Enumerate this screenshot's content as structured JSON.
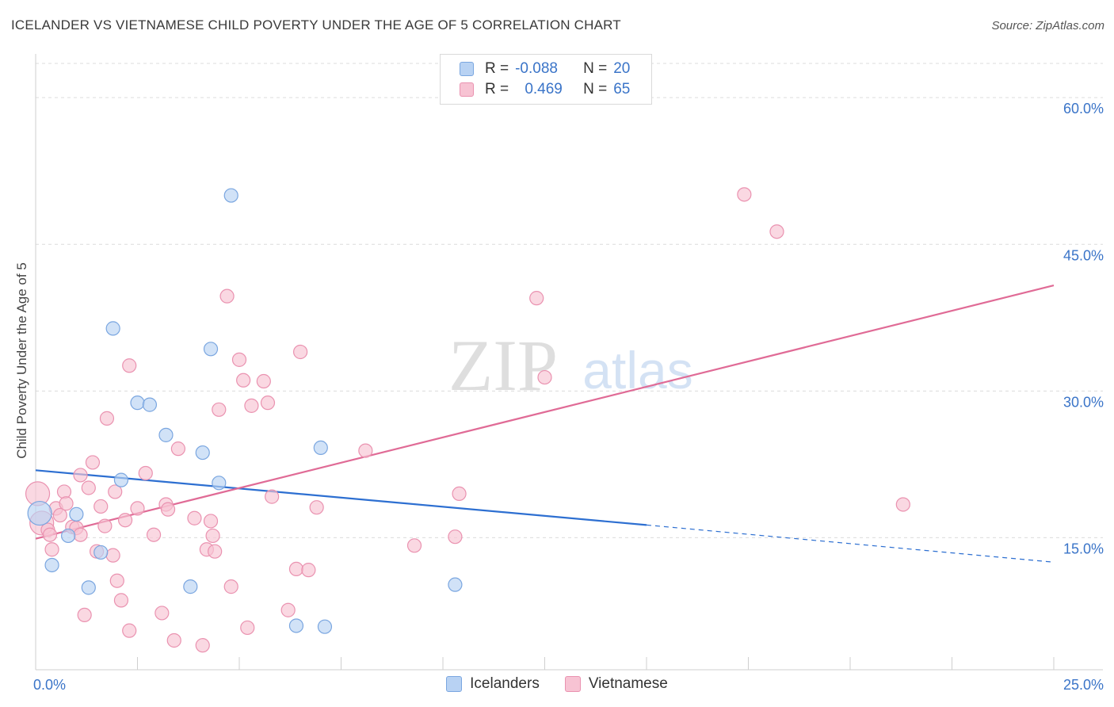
{
  "header": {
    "title": "ICELANDER VS VIETNAMESE CHILD POVERTY UNDER THE AGE OF 5 CORRELATION CHART",
    "source": "Source: ZipAtlas.com"
  },
  "stats": {
    "icelanders": {
      "r_label": "R =",
      "r": "-0.088",
      "n_label": "N =",
      "n": "20"
    },
    "vietnamese": {
      "r_label": "R =",
      "r": "0.469",
      "n_label": "N =",
      "n": "65"
    }
  },
  "legend": {
    "icelanders": "Icelanders",
    "vietnamese": "Vietnamese"
  },
  "watermark": {
    "zip": "ZIP",
    "atlas": "atlas"
  },
  "colors": {
    "icelanders_fill": "#b8d2f3",
    "icelanders_stroke": "#7aa6e0",
    "icelanders_line": "#2d6fd1",
    "vietnamese_fill": "#f7c3d3",
    "vietnamese_stroke": "#ea92b0",
    "vietnamese_line": "#e06b96",
    "tick_label": "#3a74c8",
    "grid": "#dcdcdc"
  },
  "chart_data": {
    "type": "scatter",
    "title": "ICELANDER VS VIETNAMESE CHILD POVERTY UNDER THE AGE OF 5 CORRELATION CHART",
    "xlabel": "",
    "ylabel": "Child Poverty Under the Age of 5",
    "xlim": [
      0,
      25
    ],
    "ylim": [
      1.5,
      63.5
    ],
    "x_tick_labels": [
      {
        "value": 0,
        "label": "0.0%"
      },
      {
        "value": 25,
        "label": "25.0%"
      }
    ],
    "x_minor_ticks": [
      2.5,
      5,
      7.5,
      10,
      12.5,
      15,
      17.5,
      20,
      22.5,
      25
    ],
    "y_ticks": [
      {
        "value": 15,
        "label": "15.0%"
      },
      {
        "value": 30,
        "label": "30.0%"
      },
      {
        "value": 45,
        "label": "45.0%"
      },
      {
        "value": 60,
        "label": "60.0%"
      }
    ],
    "grid": true,
    "legend_position": "bottom-center",
    "series": [
      {
        "name": "Icelanders",
        "r": -0.088,
        "n": 20,
        "points": [
          {
            "x": 0.1,
            "y": 17.5,
            "size": "large"
          },
          {
            "x": 0.4,
            "y": 12.2
          },
          {
            "x": 0.8,
            "y": 15.2
          },
          {
            "x": 1.0,
            "y": 17.4
          },
          {
            "x": 1.3,
            "y": 9.9
          },
          {
            "x": 1.6,
            "y": 13.5
          },
          {
            "x": 1.9,
            "y": 36.4
          },
          {
            "x": 2.1,
            "y": 20.9
          },
          {
            "x": 2.5,
            "y": 28.8
          },
          {
            "x": 2.8,
            "y": 28.6
          },
          {
            "x": 3.2,
            "y": 25.5
          },
          {
            "x": 3.8,
            "y": 10.0
          },
          {
            "x": 4.1,
            "y": 23.7
          },
          {
            "x": 4.3,
            "y": 34.3
          },
          {
            "x": 4.5,
            "y": 20.6
          },
          {
            "x": 4.8,
            "y": 50.0
          },
          {
            "x": 6.4,
            "y": 6.0
          },
          {
            "x": 7.1,
            "y": 5.9
          },
          {
            "x": 7.0,
            "y": 24.2
          },
          {
            "x": 10.3,
            "y": 10.2
          }
        ],
        "trend": {
          "x_start": 0,
          "y_start": 21.9,
          "x_solid_end": 15.0,
          "y_solid_end": 16.3,
          "x_end": 25,
          "y_end": 12.5
        }
      },
      {
        "name": "Vietnamese",
        "r": 0.469,
        "n": 65,
        "points": [
          {
            "x": 0.05,
            "y": 19.5,
            "size": "large"
          },
          {
            "x": 0.15,
            "y": 16.5,
            "size": "large"
          },
          {
            "x": 0.3,
            "y": 15.8
          },
          {
            "x": 0.35,
            "y": 15.3
          },
          {
            "x": 0.4,
            "y": 13.8
          },
          {
            "x": 0.5,
            "y": 18.0
          },
          {
            "x": 0.6,
            "y": 17.3
          },
          {
            "x": 0.7,
            "y": 19.7
          },
          {
            "x": 0.75,
            "y": 18.5
          },
          {
            "x": 0.9,
            "y": 16.1
          },
          {
            "x": 1.0,
            "y": 16.0
          },
          {
            "x": 1.1,
            "y": 15.3
          },
          {
            "x": 1.1,
            "y": 21.4
          },
          {
            "x": 1.2,
            "y": 7.1
          },
          {
            "x": 1.3,
            "y": 20.1
          },
          {
            "x": 1.4,
            "y": 22.7
          },
          {
            "x": 1.5,
            "y": 13.6
          },
          {
            "x": 1.6,
            "y": 18.2
          },
          {
            "x": 1.7,
            "y": 16.2
          },
          {
            "x": 1.75,
            "y": 27.2
          },
          {
            "x": 1.9,
            "y": 13.2
          },
          {
            "x": 1.95,
            "y": 19.7
          },
          {
            "x": 2.0,
            "y": 10.6
          },
          {
            "x": 2.1,
            "y": 8.6
          },
          {
            "x": 2.2,
            "y": 16.8
          },
          {
            "x": 2.3,
            "y": 5.5
          },
          {
            "x": 2.3,
            "y": 32.6
          },
          {
            "x": 2.5,
            "y": 18.0
          },
          {
            "x": 2.7,
            "y": 21.6
          },
          {
            "x": 2.9,
            "y": 15.3
          },
          {
            "x": 3.1,
            "y": 7.3
          },
          {
            "x": 3.2,
            "y": 18.4
          },
          {
            "x": 3.25,
            "y": 17.9
          },
          {
            "x": 3.4,
            "y": 4.5
          },
          {
            "x": 3.5,
            "y": 24.1
          },
          {
            "x": 3.9,
            "y": 17.0
          },
          {
            "x": 4.1,
            "y": 4.0
          },
          {
            "x": 4.2,
            "y": 13.8
          },
          {
            "x": 4.3,
            "y": 16.7
          },
          {
            "x": 4.35,
            "y": 15.2
          },
          {
            "x": 4.4,
            "y": 13.6
          },
          {
            "x": 4.5,
            "y": 28.1
          },
          {
            "x": 4.7,
            "y": 39.7
          },
          {
            "x": 4.8,
            "y": 10.0
          },
          {
            "x": 5.0,
            "y": 33.2
          },
          {
            "x": 5.1,
            "y": 31.1
          },
          {
            "x": 5.2,
            "y": 5.8
          },
          {
            "x": 5.3,
            "y": 28.5
          },
          {
            "x": 5.6,
            "y": 31.0
          },
          {
            "x": 5.7,
            "y": 28.8
          },
          {
            "x": 5.8,
            "y": 19.2
          },
          {
            "x": 6.2,
            "y": 7.6
          },
          {
            "x": 6.4,
            "y": 11.8
          },
          {
            "x": 6.5,
            "y": 34.0
          },
          {
            "x": 6.7,
            "y": 11.7
          },
          {
            "x": 6.9,
            "y": 18.1
          },
          {
            "x": 8.1,
            "y": 23.9
          },
          {
            "x": 9.3,
            "y": 14.2
          },
          {
            "x": 10.3,
            "y": 15.1
          },
          {
            "x": 10.4,
            "y": 19.5
          },
          {
            "x": 12.3,
            "y": 39.5
          },
          {
            "x": 12.5,
            "y": 31.4
          },
          {
            "x": 17.4,
            "y": 50.1
          },
          {
            "x": 18.2,
            "y": 46.3
          },
          {
            "x": 21.3,
            "y": 18.4
          }
        ],
        "trend": {
          "x_start": 0,
          "y_start": 14.9,
          "x_end": 25,
          "y_end": 40.8
        }
      }
    ]
  }
}
